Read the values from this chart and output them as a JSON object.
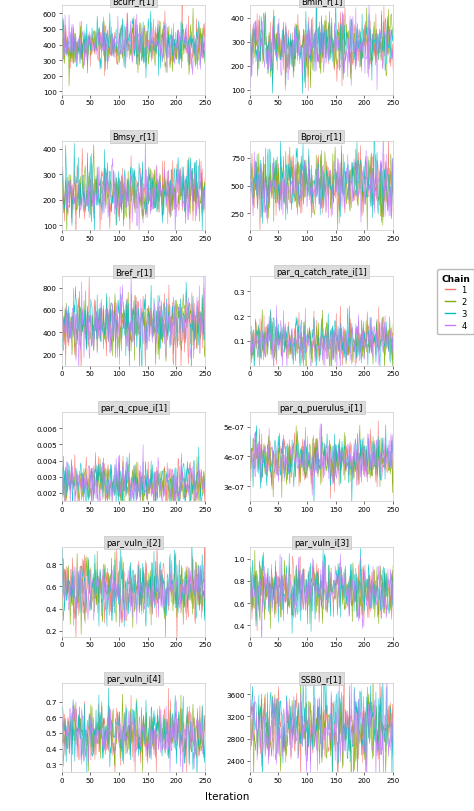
{
  "panels": [
    {
      "title": "Bcurr_r[1]",
      "row": 0,
      "col": 0,
      "ylim": [
        80,
        650
      ],
      "yticks": [
        100,
        200,
        300,
        400,
        500,
        600
      ],
      "means": [
        400,
        390,
        410,
        395
      ],
      "stds": [
        80,
        78,
        82,
        76
      ]
    },
    {
      "title": "Bmin_r[1]",
      "row": 0,
      "col": 1,
      "ylim": [
        80,
        450
      ],
      "yticks": [
        100,
        200,
        300,
        400
      ],
      "means": [
        280,
        275,
        285,
        278
      ],
      "stds": [
        65,
        63,
        67,
        62
      ]
    },
    {
      "title": "Bmsy_r[1]",
      "row": 1,
      "col": 0,
      "ylim": [
        80,
        430
      ],
      "yticks": [
        100,
        200,
        300,
        400
      ],
      "means": [
        230,
        225,
        235,
        228
      ],
      "stds": [
        60,
        58,
        62,
        57
      ]
    },
    {
      "title": "Bproj_r[1]",
      "row": 1,
      "col": 1,
      "ylim": [
        100,
        900
      ],
      "yticks": [
        250,
        500,
        750
      ],
      "means": [
        520,
        510,
        530,
        515
      ],
      "stds": [
        145,
        140,
        150,
        142
      ]
    },
    {
      "title": "Bref_r[1]",
      "row": 2,
      "col": 0,
      "ylim": [
        100,
        900
      ],
      "yticks": [
        200,
        400,
        600,
        800
      ],
      "means": [
        480,
        470,
        490,
        475
      ],
      "stds": [
        145,
        140,
        150,
        142
      ]
    },
    {
      "title": "par_q_catch_rate_i[1]",
      "row": 2,
      "col": 1,
      "ylim": [
        0.0,
        0.36
      ],
      "yticks": [
        0.1,
        0.2,
        0.3
      ],
      "means": [
        0.1,
        0.1,
        0.105,
        0.1
      ],
      "stds": [
        0.048,
        0.047,
        0.049,
        0.046
      ]
    },
    {
      "title": "par_q_cpue_i[1]",
      "row": 3,
      "col": 0,
      "ylim": [
        0.0015,
        0.007
      ],
      "yticks": [
        0.002,
        0.003,
        0.004,
        0.005,
        0.006
      ],
      "means": [
        0.0026,
        0.0025,
        0.0027,
        0.00255
      ],
      "stds": [
        0.0007,
        0.00068,
        0.00072,
        0.00067
      ]
    },
    {
      "title": "par_q_puerulus_i[1]",
      "row": 3,
      "col": 1,
      "ylim": [
        2.5e-07,
        5.5e-07
      ],
      "yticks": [
        3e-07,
        4e-07,
        5e-07
      ],
      "means": [
        3.9e-07,
        3.85e-07,
        3.95e-07,
        3.88e-07
      ],
      "stds": [
        4.2e-08,
        4.1e-08,
        4.3e-08,
        4.05e-08
      ]
    },
    {
      "title": "par_vuln_i[2]",
      "row": 4,
      "col": 0,
      "ylim": [
        0.15,
        0.95
      ],
      "yticks": [
        0.2,
        0.4,
        0.6,
        0.8
      ],
      "means": [
        0.57,
        0.56,
        0.58,
        0.565
      ],
      "stds": [
        0.14,
        0.136,
        0.144,
        0.138
      ]
    },
    {
      "title": "par_vuln_i[3]",
      "row": 4,
      "col": 1,
      "ylim": [
        0.3,
        1.1
      ],
      "yticks": [
        0.4,
        0.6,
        0.8,
        1.0
      ],
      "means": [
        0.72,
        0.71,
        0.73,
        0.715
      ],
      "stds": [
        0.14,
        0.136,
        0.144,
        0.138
      ]
    },
    {
      "title": "par_vuln_i[4]",
      "row": 5,
      "col": 0,
      "ylim": [
        0.25,
        0.82
      ],
      "yticks": [
        0.3,
        0.4,
        0.5,
        0.6,
        0.7
      ],
      "means": [
        0.5,
        0.49,
        0.51,
        0.495
      ],
      "stds": [
        0.1,
        0.098,
        0.102,
        0.097
      ]
    },
    {
      "title": "SSB0_r[1]",
      "row": 5,
      "col": 1,
      "ylim": [
        2200,
        3800
      ],
      "yticks": [
        2400,
        2800,
        3200,
        3600
      ],
      "means": [
        3000,
        2950,
        3050,
        2975
      ],
      "stds": [
        340,
        330,
        350,
        335
      ]
    }
  ],
  "n_iterations": 250,
  "chain_colors": [
    "#F8766D",
    "#7CAE00",
    "#00BFC4",
    "#C77CFF"
  ],
  "chain_labels": [
    "1",
    "2",
    "3",
    "4"
  ],
  "xlabel": "Iteration",
  "legend_title": "Chain",
  "background_color": "#FFFFFF",
  "panel_bg": "#FFFFFF",
  "title_bg": "#DCDCDC",
  "seed": 42
}
